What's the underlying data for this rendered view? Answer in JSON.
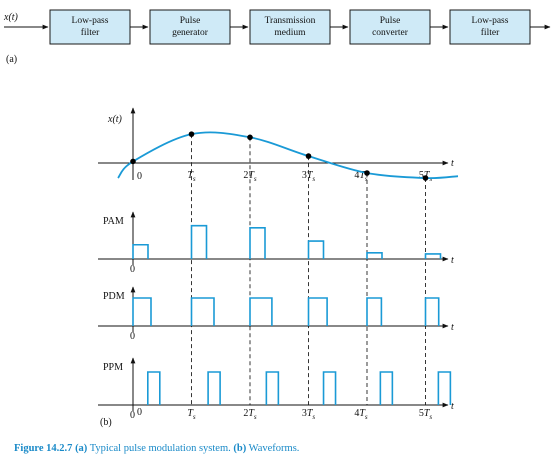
{
  "block_diagram": {
    "input_label": "x(t)",
    "blocks": [
      {
        "line1": "Low-pass",
        "line2": "filter"
      },
      {
        "line1": "Pulse",
        "line2": "generator"
      },
      {
        "line1": "Transmission",
        "line2": "medium"
      },
      {
        "line1": "Pulse",
        "line2": "converter"
      },
      {
        "line1": "Low-pass",
        "line2": "filter"
      }
    ],
    "part_label": "(a)"
  },
  "waveforms": {
    "signal_label": "x(t)",
    "time_axis_label": "t",
    "origin_label": "0",
    "tick_labels": [
      "T",
      "2T",
      "3T",
      "4T",
      "5T"
    ],
    "tick_subscript": "s",
    "sample_values": [
      0.05,
      0.92,
      0.82,
      0.22,
      -0.32,
      -0.48
    ],
    "pulse_rows": [
      {
        "label": "PAM",
        "zero": "0"
      },
      {
        "label": "PDM",
        "zero": "0"
      },
      {
        "label": "PPM",
        "zero": "0"
      }
    ],
    "pdm_width_fraction": [
      0.4,
      0.55,
      0.53,
      0.42,
      0.28,
      0.24
    ],
    "ppm_offset_fraction": [
      0.4,
      0.55,
      0.53,
      0.42,
      0.28,
      0.24
    ],
    "part_label": "(b)",
    "colors": {
      "signal": "#1a9ad6",
      "box_fill": "#cfeaf7"
    }
  },
  "caption": {
    "figure": "Figure 14.2.7",
    "part_a_tag": "(a)",
    "part_a_text": " Typical pulse modulation system. ",
    "part_b_tag": "(b)",
    "part_b_text": " Waveforms."
  }
}
